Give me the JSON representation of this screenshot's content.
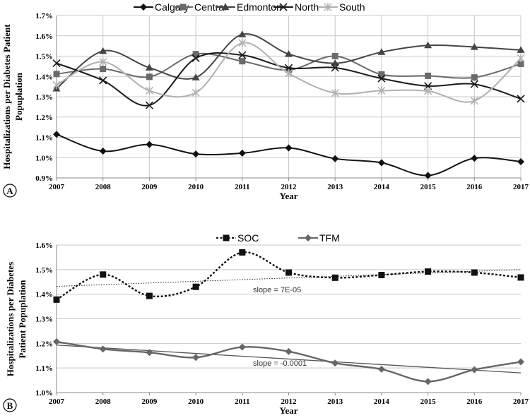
{
  "chart_data": [
    {
      "panel": "A",
      "type": "line",
      "xlabel": "Year",
      "ylabel": "Hospitalizations per Diabetes Patient Popuplation",
      "ylabel_lines": [
        "Hospitalizations per Diabetes Patient",
        "Popuplation"
      ],
      "x": [
        2007,
        2008,
        2009,
        2010,
        2011,
        2012,
        2013,
        2014,
        2015,
        2016,
        2017
      ],
      "x_labels": [
        "2007",
        "2008",
        "2009",
        "2010",
        "2011",
        "2012",
        "2013",
        "2014",
        "2015",
        "2016",
        "2017"
      ],
      "ylim": [
        0.009,
        0.017
      ],
      "y_ticks": [
        0.009,
        0.01,
        0.011,
        0.012,
        0.013,
        0.014,
        0.015,
        0.016,
        0.017
      ],
      "y_tick_labels": [
        "0.9%",
        "1.0%",
        "1.1%",
        "1.2%",
        "1.3%",
        "1.4%",
        "1.5%",
        "1.6%",
        "1.7%"
      ],
      "legend_position": "top",
      "series": [
        {
          "name": "Calgary",
          "marker": "diamond",
          "color": "#111111",
          "values": [
            0.01115,
            0.01032,
            0.01065,
            0.01018,
            0.01022,
            0.01048,
            0.00995,
            0.00975,
            0.00912,
            0.00997,
            0.0098
          ]
        },
        {
          "name": "Central",
          "marker": "square",
          "color": "#6a6a6a",
          "values": [
            0.01412,
            0.01437,
            0.01398,
            0.0151,
            0.01475,
            0.01432,
            0.015,
            0.0141,
            0.01403,
            0.01395,
            0.01462
          ]
        },
        {
          "name": "Edmonton",
          "marker": "triangle",
          "color": "#444444",
          "values": [
            0.0134,
            0.01525,
            0.01443,
            0.01395,
            0.01607,
            0.0151,
            0.01465,
            0.0152,
            0.01553,
            0.01545,
            0.0153
          ]
        },
        {
          "name": "North",
          "marker": "x",
          "color": "#1a1a1a",
          "values": [
            0.01465,
            0.0138,
            0.01258,
            0.0149,
            0.01505,
            0.01442,
            0.01443,
            0.0139,
            0.01353,
            0.01362,
            0.0129
          ]
        },
        {
          "name": "South",
          "marker": "star",
          "color": "#b0b0b0",
          "values": [
            0.01358,
            0.01472,
            0.0133,
            0.0132,
            0.01565,
            0.01415,
            0.01318,
            0.0133,
            0.01328,
            0.0128,
            0.0149
          ]
        }
      ]
    },
    {
      "panel": "B",
      "type": "line",
      "xlabel": "Year",
      "ylabel": "Hospitalizations per Diabetes Patient Popuplation",
      "ylabel_lines": [
        "Hospitalizations per Diabetes",
        "Patient Popuplation"
      ],
      "x": [
        2007,
        2008,
        2009,
        2010,
        2011,
        2012,
        2013,
        2014,
        2015,
        2016,
        2017
      ],
      "x_labels": [
        "2007",
        "2008",
        "2009",
        "2010",
        "2011",
        "2012",
        "2013",
        "2014",
        "2015",
        "2016",
        "2017"
      ],
      "ylim": [
        0.01,
        0.016
      ],
      "y_ticks": [
        0.01,
        0.011,
        0.012,
        0.013,
        0.014,
        0.015,
        0.016
      ],
      "y_tick_labels": [
        "1.0%",
        "1.1%",
        "1.2%",
        "1.3%",
        "1.4%",
        "1.5%",
        "1.6%"
      ],
      "legend_position": "top",
      "series": [
        {
          "name": "SOC",
          "marker": "square",
          "color": "#111111",
          "dash": true,
          "values": [
            0.01378,
            0.0148,
            0.01393,
            0.0143,
            0.0157,
            0.01488,
            0.01467,
            0.01478,
            0.01492,
            0.01488,
            0.01468
          ],
          "trend": [
            0.01432,
            0.015
          ],
          "slope_label": "slope = 7E-05"
        },
        {
          "name": "TFM",
          "marker": "diamond",
          "color": "#666666",
          "dash": false,
          "values": [
            0.01207,
            0.01177,
            0.01163,
            0.01143,
            0.01185,
            0.01167,
            0.0112,
            0.01095,
            0.01045,
            0.01093,
            0.01125
          ],
          "trend": [
            0.01193,
            0.0108
          ],
          "slope_label": "slope = -0.0001"
        }
      ]
    }
  ]
}
